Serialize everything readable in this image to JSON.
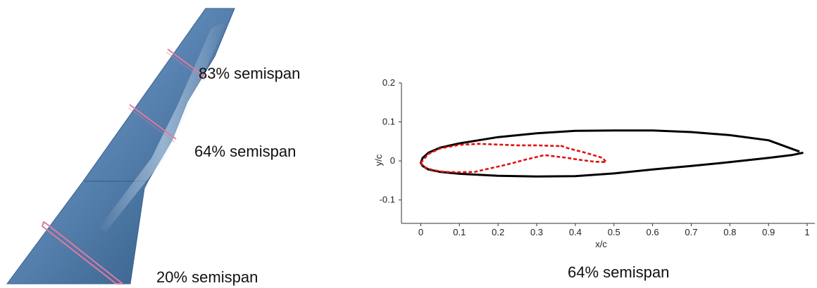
{
  "wing": {
    "section_labels": [
      "83% semispan",
      "64% semispan",
      "20% semispan"
    ]
  },
  "caption": "64% semispan",
  "chart_data": {
    "type": "line",
    "title": "",
    "xlabel": "x/c",
    "ylabel": "y/c",
    "xlim": [
      -0.05,
      1.02
    ],
    "ylim": [
      -0.16,
      0.2
    ],
    "xticks": [
      "0",
      "0.1",
      "0.2",
      "0.3",
      "0.4",
      "0.5",
      "0.6",
      "0.7",
      "0.8",
      "0.9",
      "1"
    ],
    "yticks": [
      "0.2",
      "0.1",
      "0",
      "-0.1"
    ],
    "grid": false,
    "colors": {
      "series_1": "#000000",
      "series_2": "#e01010"
    },
    "series": [
      {
        "style": "solid",
        "x": [
          0.98,
          0.9,
          0.8,
          0.7,
          0.6,
          0.5,
          0.4,
          0.3,
          0.2,
          0.1,
          0.05,
          0.02,
          0.005,
          0.0,
          0.005,
          0.02,
          0.05,
          0.1,
          0.2,
          0.3,
          0.4,
          0.5,
          0.6,
          0.7,
          0.8,
          0.9,
          0.96,
          0.99
        ],
        "y": [
          0.024,
          0.053,
          0.066,
          0.074,
          0.078,
          0.078,
          0.077,
          0.071,
          0.061,
          0.045,
          0.034,
          0.021,
          0.008,
          -0.005,
          -0.013,
          -0.022,
          -0.028,
          -0.033,
          -0.038,
          -0.04,
          -0.039,
          -0.032,
          -0.022,
          -0.013,
          -0.003,
          0.008,
          0.015,
          0.021
        ]
      },
      {
        "style": "dashed",
        "x": [
          0.0,
          0.02,
          0.05,
          0.1,
          0.15,
          0.2,
          0.25,
          0.3,
          0.36,
          0.36,
          0.38,
          0.43,
          0.47,
          0.48,
          0.45,
          0.41,
          0.37,
          0.32,
          0.27,
          0.22,
          0.17,
          0.14,
          0.1,
          0.06,
          0.03,
          0.01,
          0.0
        ],
        "y": [
          -0.005,
          0.018,
          0.032,
          0.041,
          0.044,
          0.042,
          0.04,
          0.04,
          0.038,
          0.04,
          0.033,
          0.02,
          0.008,
          -0.003,
          -0.002,
          0.003,
          0.009,
          0.015,
          0.003,
          -0.01,
          -0.021,
          -0.028,
          -0.029,
          -0.028,
          -0.023,
          -0.016,
          -0.005
        ]
      }
    ]
  }
}
